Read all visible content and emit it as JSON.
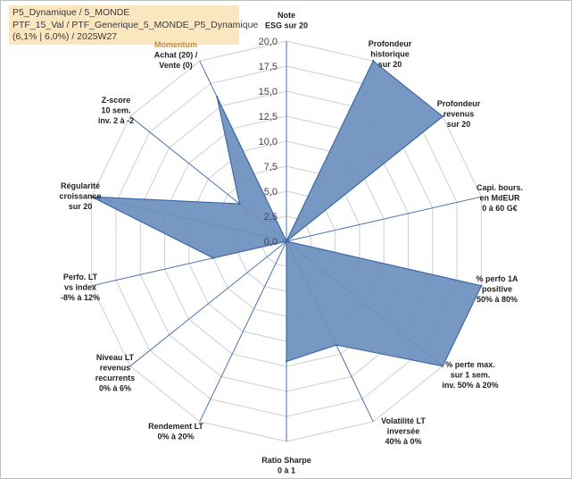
{
  "header": {
    "line1": "P5_Dynamique / 5_MONDE",
    "line2": "PTF_15_Val / PTF_Generique_5_MONDE_P5_Dynamique",
    "line3": "(6,1% | 6,0%) / 2025W27"
  },
  "chart_data": {
    "type": "radar",
    "title": "",
    "rmax": 20,
    "rings": [
      0,
      2.5,
      5,
      7.5,
      10,
      12.5,
      15,
      17.5,
      20
    ],
    "tick_labels": [
      "0,0",
      "2,5",
      "5,0",
      "7,5",
      "10,0",
      "12,5",
      "15,0",
      "17,5",
      "20,0"
    ],
    "fill_color": "#6d8fbf",
    "line_color": "#3f6aa6",
    "axes": [
      {
        "label_lines": [
          "Note",
          "ESG sur 20"
        ],
        "value": 0
      },
      {
        "label_lines": [
          "Profondeur",
          "historique",
          "sur 20"
        ],
        "value": 20
      },
      {
        "label_lines": [
          "Profondeur",
          "revenus",
          "sur 20"
        ],
        "value": 20
      },
      {
        "label_lines": [
          "Capi. bours.",
          "en MdEUR",
          "0 à 60 G€"
        ],
        "value": 0
      },
      {
        "label_lines": [
          "% perfo 1A",
          "positive",
          "50% à 80%"
        ],
        "value": 20
      },
      {
        "label_lines": [
          "% perte max.",
          "sur 1 sem.",
          "inv. 50% à 20%"
        ],
        "value": 20
      },
      {
        "label_lines": [
          "Volatilité LT",
          "inversée",
          "40% à 0%"
        ],
        "value": 11.5
      },
      {
        "label_lines": [
          "Ratio Sharpe",
          "0 à 1"
        ],
        "value": 12
      },
      {
        "label_lines": [
          "Rendement LT",
          "0% à 20%"
        ],
        "value": 0
      },
      {
        "label_lines": [
          "Niveau LT",
          "revenus",
          "recurrents",
          "0% à 6%"
        ],
        "value": 0
      },
      {
        "label_lines": [
          "Perfo. LT",
          "vs index",
          "-8% à 12%"
        ],
        "value": 7.5
      },
      {
        "label_lines": [
          "Régularité",
          "croissance",
          "sur 20"
        ],
        "value": 20
      },
      {
        "label_lines": [
          "Z-score",
          "10 sem.",
          "inv. 2 à -2"
        ],
        "value": 6
      },
      {
        "label_lines": [
          "Momentum",
          "Achat (20) /",
          "Vente (0)"
        ],
        "value": 16
      }
    ]
  }
}
